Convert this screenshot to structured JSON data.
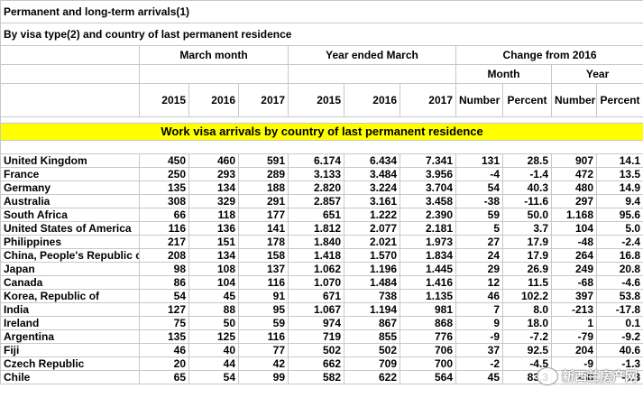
{
  "title": "Permanent and long-term arrivals(1)",
  "subtitle": "By visa type(2) and country of last permanent residence",
  "groups": {
    "march_month": "March month",
    "year_ended": "Year ended March",
    "change": "Change from 2016",
    "change_month": "Month",
    "change_year": "Year"
  },
  "columns": [
    "2015",
    "2016",
    "2017",
    "2015",
    "2016",
    "2017",
    "Number",
    "Percent",
    "Number",
    "Percent"
  ],
  "band_label": "Work visa arrivals by country of last permanent residence",
  "rows": [
    {
      "name": "United Kingdom",
      "v": [
        "450",
        "460",
        "591",
        "6.174",
        "6.434",
        "7.341",
        "131",
        "28.5",
        "907",
        "14.1"
      ]
    },
    {
      "name": "France",
      "v": [
        "250",
        "293",
        "289",
        "3.133",
        "3.484",
        "3.956",
        "-4",
        "-1.4",
        "472",
        "13.5"
      ]
    },
    {
      "name": "Germany",
      "v": [
        "135",
        "134",
        "188",
        "2.820",
        "3.224",
        "3.704",
        "54",
        "40.3",
        "480",
        "14.9"
      ]
    },
    {
      "name": "Australia",
      "v": [
        "308",
        "329",
        "291",
        "2.857",
        "3.161",
        "3.458",
        "-38",
        "-11.6",
        "297",
        "9.4"
      ]
    },
    {
      "name": "South Africa",
      "v": [
        "66",
        "118",
        "177",
        "651",
        "1.222",
        "2.390",
        "59",
        "50.0",
        "1.168",
        "95.6"
      ]
    },
    {
      "name": "United States of America",
      "v": [
        "116",
        "136",
        "141",
        "1.812",
        "2.077",
        "2.181",
        "5",
        "3.7",
        "104",
        "5.0"
      ]
    },
    {
      "name": "Philippines",
      "v": [
        "217",
        "151",
        "178",
        "1.840",
        "2.021",
        "1.973",
        "27",
        "17.9",
        "-48",
        "-2.4"
      ]
    },
    {
      "name": "China, People's Republic of",
      "v": [
        "208",
        "134",
        "158",
        "1.418",
        "1.570",
        "1.834",
        "24",
        "17.9",
        "264",
        "16.8"
      ]
    },
    {
      "name": "Japan",
      "v": [
        "98",
        "108",
        "137",
        "1.062",
        "1.196",
        "1.445",
        "29",
        "26.9",
        "249",
        "20.8"
      ]
    },
    {
      "name": "Canada",
      "v": [
        "86",
        "104",
        "116",
        "1.070",
        "1.484",
        "1.416",
        "12",
        "11.5",
        "-68",
        "-4.6"
      ]
    },
    {
      "name": "Korea, Republic of",
      "v": [
        "54",
        "45",
        "91",
        "671",
        "738",
        "1.135",
        "46",
        "102.2",
        "397",
        "53.8"
      ]
    },
    {
      "name": "India",
      "v": [
        "127",
        "88",
        "95",
        "1.067",
        "1.194",
        "981",
        "7",
        "8.0",
        "-213",
        "-17.8"
      ]
    },
    {
      "name": "Ireland",
      "v": [
        "75",
        "50",
        "59",
        "974",
        "867",
        "868",
        "9",
        "18.0",
        "1",
        "0.1"
      ]
    },
    {
      "name": "Argentina",
      "v": [
        "135",
        "125",
        "116",
        "719",
        "855",
        "776",
        "-9",
        "-7.2",
        "-79",
        "-9.2"
      ]
    },
    {
      "name": "Fiji",
      "v": [
        "46",
        "40",
        "77",
        "502",
        "502",
        "706",
        "37",
        "92.5",
        "204",
        "40.6"
      ]
    },
    {
      "name": "Czech Republic",
      "v": [
        "20",
        "44",
        "42",
        "662",
        "709",
        "700",
        "-2",
        "-4.5",
        "-9",
        "-1.3"
      ]
    },
    {
      "name": "Chile",
      "v": [
        "65",
        "54",
        "99",
        "582",
        "622",
        "564",
        "45",
        "83.3",
        "-58",
        "-9.3"
      ]
    }
  ],
  "watermark": "新西兰房产网"
}
